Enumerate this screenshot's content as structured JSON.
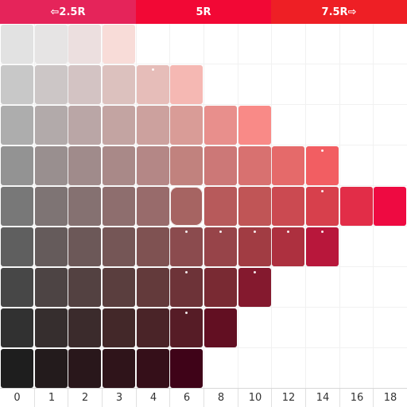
{
  "tabs": {
    "left": "⇦2.5R",
    "center": "5R",
    "right": "7.5R⇨"
  },
  "tab_colors": {
    "left": "#e5245a",
    "center": "#f20835",
    "right": "#ee1f25"
  },
  "chroma_axis": [
    "0",
    "1",
    "2",
    "3",
    "4",
    "6",
    "8",
    "10",
    "12",
    "14",
    "16",
    "18"
  ],
  "grid_rows": 9,
  "grid_cols": 12,
  "cells": [
    {
      "r": 0,
      "c": 0,
      "color": "#e2e2e2"
    },
    {
      "r": 0,
      "c": 1,
      "color": "#e6e4e4"
    },
    {
      "r": 0,
      "c": 2,
      "color": "#ecdfdf"
    },
    {
      "r": 0,
      "c": 3,
      "color": "#f8dcd8"
    },
    {
      "r": 1,
      "c": 0,
      "color": "#c8c8c8"
    },
    {
      "r": 1,
      "c": 1,
      "color": "#ccc6c6"
    },
    {
      "r": 1,
      "c": 2,
      "color": "#d3c3c3"
    },
    {
      "r": 1,
      "c": 3,
      "color": "#dcc1be"
    },
    {
      "r": 1,
      "c": 4,
      "color": "#e6bdb9",
      "dot": true
    },
    {
      "r": 1,
      "c": 5,
      "color": "#f5b8b3"
    },
    {
      "r": 2,
      "c": 0,
      "color": "#adadad"
    },
    {
      "r": 2,
      "c": 1,
      "color": "#b2aaaa"
    },
    {
      "r": 2,
      "c": 2,
      "color": "#baa6a6"
    },
    {
      "r": 2,
      "c": 3,
      "color": "#c3a4a2"
    },
    {
      "r": 2,
      "c": 4,
      "color": "#cca19e"
    },
    {
      "r": 2,
      "c": 5,
      "color": "#d99c97"
    },
    {
      "r": 2,
      "c": 6,
      "color": "#e88f8c"
    },
    {
      "r": 2,
      "c": 7,
      "color": "#f98a87"
    },
    {
      "r": 3,
      "c": 0,
      "color": "#939393"
    },
    {
      "r": 3,
      "c": 1,
      "color": "#998f8f"
    },
    {
      "r": 3,
      "c": 2,
      "color": "#a08b8b"
    },
    {
      "r": 3,
      "c": 3,
      "color": "#a98988"
    },
    {
      "r": 3,
      "c": 4,
      "color": "#b48786"
    },
    {
      "r": 3,
      "c": 5,
      "color": "#c1827e"
    },
    {
      "r": 3,
      "c": 6,
      "color": "#cc7877"
    },
    {
      "r": 3,
      "c": 7,
      "color": "#d87170"
    },
    {
      "r": 3,
      "c": 8,
      "color": "#e56a6a"
    },
    {
      "r": 3,
      "c": 9,
      "color": "#f25e62",
      "dot": true
    },
    {
      "r": 4,
      "c": 0,
      "color": "#787878"
    },
    {
      "r": 4,
      "c": 1,
      "color": "#7e7474"
    },
    {
      "r": 4,
      "c": 2,
      "color": "#857171"
    },
    {
      "r": 4,
      "c": 3,
      "color": "#8e6e6e"
    },
    {
      "r": 4,
      "c": 4,
      "color": "#986b6b"
    },
    {
      "r": 4,
      "c": 5,
      "color": "#a66462",
      "selected": true
    },
    {
      "r": 4,
      "c": 6,
      "color": "#b75a5b"
    },
    {
      "r": 4,
      "c": 7,
      "color": "#c05556"
    },
    {
      "r": 4,
      "c": 8,
      "color": "#cb4a51"
    },
    {
      "r": 4,
      "c": 9,
      "color": "#d7404c",
      "dot": true
    },
    {
      "r": 4,
      "c": 10,
      "color": "#e22d48"
    },
    {
      "r": 4,
      "c": 11,
      "color": "#ee0a41"
    },
    {
      "r": 5,
      "c": 0,
      "color": "#5f5f5f"
    },
    {
      "r": 5,
      "c": 1,
      "color": "#655b5b"
    },
    {
      "r": 5,
      "c": 2,
      "color": "#6c5858"
    },
    {
      "r": 5,
      "c": 3,
      "color": "#755656"
    },
    {
      "r": 5,
      "c": 4,
      "color": "#7f5252"
    },
    {
      "r": 5,
      "c": 5,
      "color": "#8b4b4e",
      "dot": true
    },
    {
      "r": 5,
      "c": 6,
      "color": "#974449",
      "dot": true
    },
    {
      "r": 5,
      "c": 7,
      "color": "#a13c43",
      "dot": true
    },
    {
      "r": 5,
      "c": 8,
      "color": "#ad303f",
      "dot": true
    },
    {
      "r": 5,
      "c": 9,
      "color": "#b8173b",
      "dot": true
    },
    {
      "r": 6,
      "c": 0,
      "color": "#474747"
    },
    {
      "r": 6,
      "c": 1,
      "color": "#4d4444"
    },
    {
      "r": 6,
      "c": 2,
      "color": "#534141"
    },
    {
      "r": 6,
      "c": 3,
      "color": "#5a3e3e"
    },
    {
      "r": 6,
      "c": 4,
      "color": "#633a3b"
    },
    {
      "r": 6,
      "c": 5,
      "color": "#6d3338",
      "dot": true
    },
    {
      "r": 6,
      "c": 6,
      "color": "#792a33"
    },
    {
      "r": 6,
      "c": 7,
      "color": "#84192e",
      "dot": true
    },
    {
      "r": 7,
      "c": 0,
      "color": "#313131"
    },
    {
      "r": 7,
      "c": 1,
      "color": "#362e2e"
    },
    {
      "r": 7,
      "c": 2,
      "color": "#3b2b2c"
    },
    {
      "r": 7,
      "c": 3,
      "color": "#432829"
    },
    {
      "r": 7,
      "c": 4,
      "color": "#4a2428"
    },
    {
      "r": 7,
      "c": 5,
      "color": "#561c26",
      "dot": true
    },
    {
      "r": 7,
      "c": 6,
      "color": "#620f22"
    },
    {
      "r": 8,
      "c": 0,
      "color": "#1e1e1e"
    },
    {
      "r": 8,
      "c": 1,
      "color": "#231b1c"
    },
    {
      "r": 8,
      "c": 2,
      "color": "#29171b"
    },
    {
      "r": 8,
      "c": 3,
      "color": "#2f141a"
    },
    {
      "r": 8,
      "c": 4,
      "color": "#350f19"
    },
    {
      "r": 8,
      "c": 5,
      "color": "#3f0318"
    }
  ]
}
